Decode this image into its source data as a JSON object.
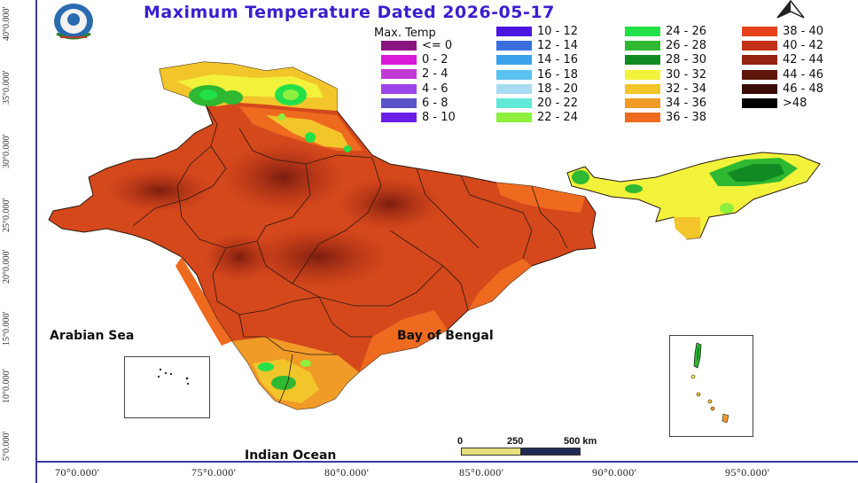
{
  "title": "Maximum Temperature Dated 2026-05-17",
  "legend": {
    "title": "Max. Temp",
    "items": [
      {
        "label": "<= 0",
        "color": "#8a1580"
      },
      {
        "label": "0 - 2",
        "color": "#d81ad8"
      },
      {
        "label": "2 - 4",
        "color": "#c23ad6"
      },
      {
        "label": "4 - 6",
        "color": "#9d45e8"
      },
      {
        "label": "6 - 8",
        "color": "#5a52c6"
      },
      {
        "label": "8 - 10",
        "color": "#6a1fe8"
      },
      {
        "label": "10 - 12",
        "color": "#4a17e0"
      },
      {
        "label": "12 - 14",
        "color": "#3b6fe0"
      },
      {
        "label": "14 - 16",
        "color": "#3aa2ec"
      },
      {
        "label": "16 - 18",
        "color": "#5bc1ee"
      },
      {
        "label": "18 - 20",
        "color": "#a8dcf2"
      },
      {
        "label": "20 - 22",
        "color": "#62e8d8"
      },
      {
        "label": "22 - 24",
        "color": "#8df03f"
      },
      {
        "label": "24 - 26",
        "color": "#23e048"
      },
      {
        "label": "26 - 28",
        "color": "#2fb832"
      },
      {
        "label": "28 - 30",
        "color": "#118a23"
      },
      {
        "label": "30 - 32",
        "color": "#f2f23a"
      },
      {
        "label": "32 - 34",
        "color": "#f2c52a"
      },
      {
        "label": "34 - 36",
        "color": "#f09a28"
      },
      {
        "label": "36 - 38",
        "color": "#ee6a1f"
      },
      {
        "label": "38 - 40",
        "color": "#e6431c"
      },
      {
        "label": "40 - 42",
        "color": "#c43116"
      },
      {
        "label": "42 - 44",
        "color": "#932412"
      },
      {
        "label": "44 - 46",
        "color": "#5f1608"
      },
      {
        "label": "46 - 48",
        "color": "#3a0b05"
      },
      {
        "label": ">48",
        "color": "#000000"
      }
    ]
  },
  "latitude_labels": [
    "40°0.000'",
    "35°0.000'",
    "30°0.000'",
    "25°0.000'",
    "20°0.000'",
    "15°0.000'",
    "10°0.000'",
    "5°0.000'"
  ],
  "longitude_labels": [
    "70°0.000'",
    "75°0.000'",
    "80°0.000'",
    "85°0.000'",
    "90°0.000'",
    "95°0.000'"
  ],
  "labels": {
    "arabian_sea": "Arabian Sea",
    "bay_of_bengal": "Bay of Bengal",
    "indian_ocean": "Indian Ocean"
  },
  "scale_bar": {
    "ticks": [
      "0",
      "250",
      "500 km"
    ]
  },
  "icons": {
    "north_arrow": "north-arrow-icon",
    "logo": "imd-emblem-icon"
  }
}
